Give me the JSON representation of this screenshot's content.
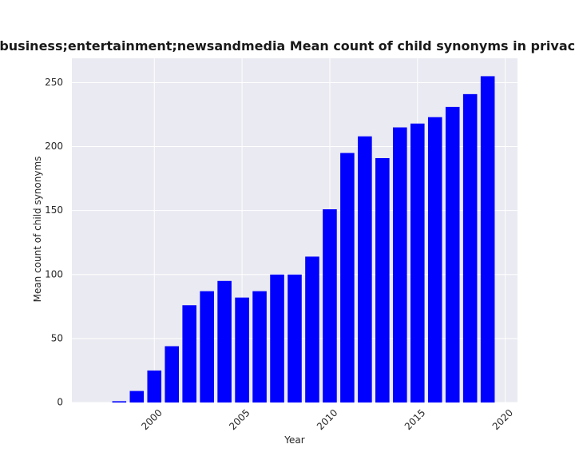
{
  "chart_data": {
    "type": "bar",
    "title": "Mean count of child synonyms in privacy policies that are related to business;entertainment;newsandmedia Mean count of child synonyms in privacy policies that are related to business;entertainment;newsandmedia",
    "xlabel": "Year",
    "ylabel": "Mean count of child synonyms",
    "x": [
      1998,
      1999,
      2000,
      2001,
      2002,
      2003,
      2004,
      2005,
      2006,
      2007,
      2008,
      2009,
      2010,
      2011,
      2012,
      2013,
      2014,
      2015,
      2016,
      2017,
      2018,
      2019
    ],
    "values": [
      1,
      9,
      25,
      44,
      76,
      87,
      95,
      82,
      87,
      100,
      100,
      114,
      151,
      195,
      208,
      191,
      215,
      218,
      223,
      231,
      241,
      255
    ],
    "xlim": [
      1995.3,
      2020.7
    ],
    "ylim": [
      0,
      269
    ],
    "xticks": [
      2000,
      2005,
      2010,
      2015,
      2020
    ],
    "xtick_labels": [
      "2000",
      "2005",
      "2010",
      "2015",
      "2020"
    ],
    "yticks": [
      0,
      50,
      100,
      150,
      200,
      250
    ],
    "ytick_labels": [
      "0",
      "50",
      "100",
      "150",
      "200",
      "250"
    ],
    "grid": true,
    "bar_color": "#0000ff",
    "background_color": "#eaeaf2",
    "grid_color": "#ffffff"
  }
}
